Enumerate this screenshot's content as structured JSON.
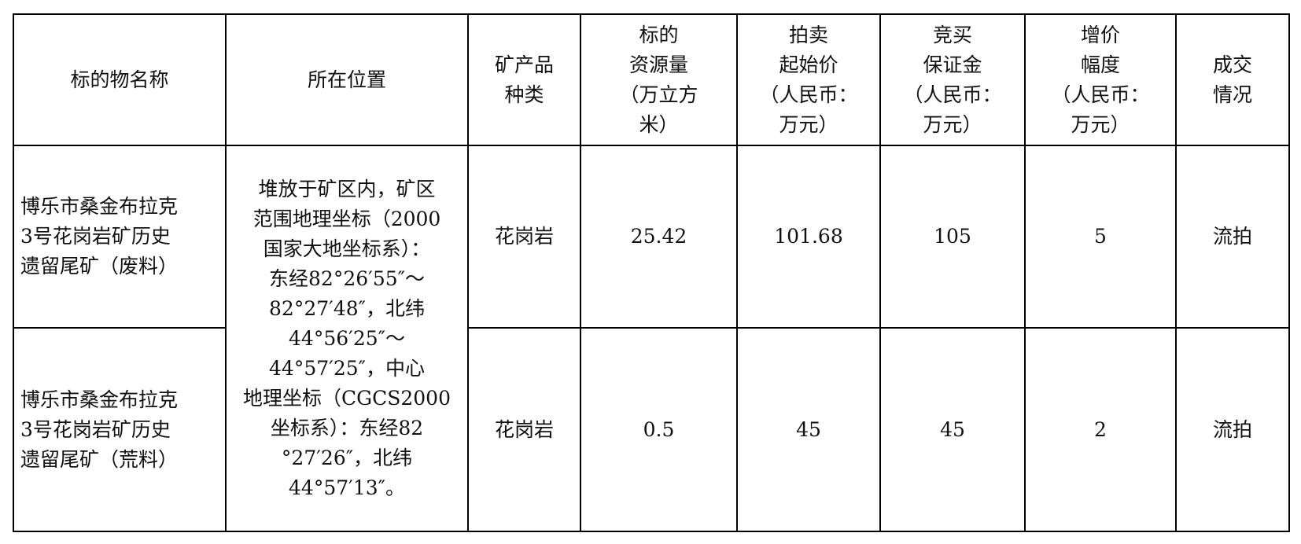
{
  "table": {
    "headers": [
      [
        "标的物名称"
      ],
      [
        "所在位置"
      ],
      [
        "矿产品",
        "种类"
      ],
      [
        "标的",
        "资源量",
        "（万立方",
        "米）"
      ],
      [
        "拍卖",
        "起始价",
        "（人民币：",
        "万元）"
      ],
      [
        "竞买",
        "保证金",
        "（人民币：",
        "万元）"
      ],
      [
        "增价",
        "幅度",
        "（人民币：",
        "万元）"
      ],
      [
        "成交",
        "情况"
      ]
    ],
    "location_lines": [
      "堆放于矿区内，矿区",
      "范围地理坐标（2000",
      "国家大地坐标系）：",
      "东经82°26′55″～",
      "82°27′48″，北纬",
      "44°56′25″～",
      "44°57′25″，中心",
      "地理坐标（CGCS2000",
      "坐标系）：东经82",
      "°27′26″，北纬",
      "44°57′13″。"
    ],
    "rows": [
      {
        "name_lines": [
          "博乐市桑金布拉克",
          "3号花岗岩矿历史",
          "遗留尾矿（废料）"
        ],
        "mineral": "花岗岩",
        "resource": "25.42",
        "start_price": "101.68",
        "deposit": "105",
        "increment": "5",
        "status": "流拍"
      },
      {
        "name_lines": [
          "博乐市桑金布拉克",
          "3号花岗岩矿历史",
          "遗留尾矿（荒料）"
        ],
        "mineral": "花岗岩",
        "resource": "0.5",
        "start_price": "45",
        "deposit": "45",
        "increment": "2",
        "status": "流拍"
      }
    ]
  }
}
